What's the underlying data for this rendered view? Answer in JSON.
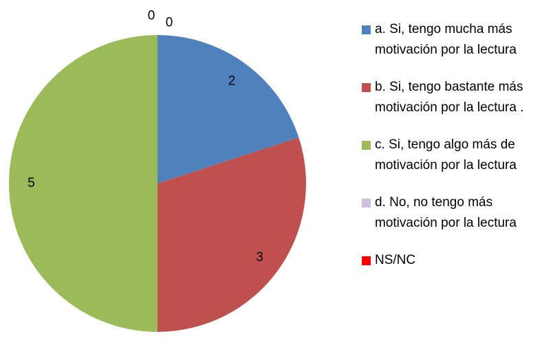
{
  "chart_data": {
    "type": "pie",
    "categories": [
      "a. Si, tengo mucha más motivación por la lectura",
      "b. Si, tengo bastante más motivación por la lectura .",
      "c. Si, tengo algo más de motivación por la lectura",
      "d. No, no tengo más motivación por la lectura",
      "NS/NC"
    ],
    "values": [
      2,
      3,
      5,
      0,
      0
    ],
    "colors": [
      "#4f81bd",
      "#c0504d",
      "#9bbb59",
      "#ccc0da",
      "#ff0000"
    ],
    "legend": "right"
  }
}
